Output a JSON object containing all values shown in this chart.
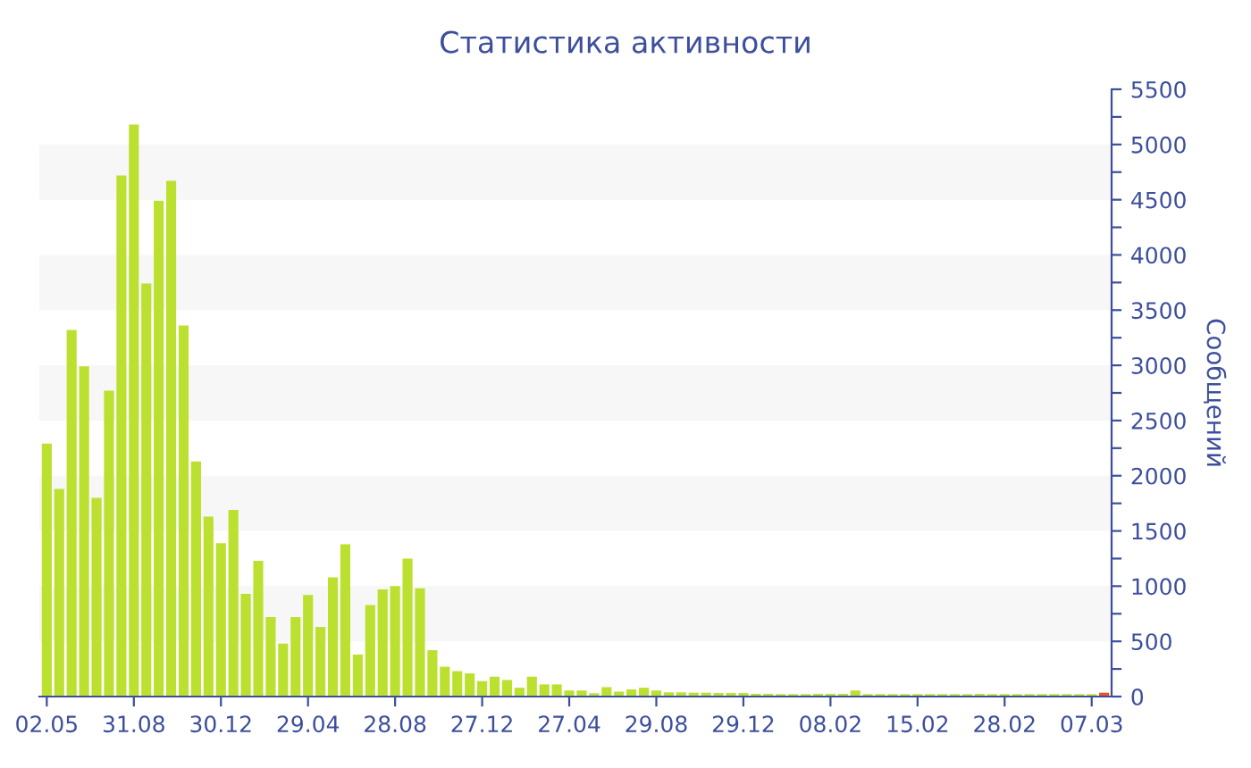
{
  "chart_data": {
    "type": "bar",
    "title": "Статистика активности",
    "ylabel": "Сообщений",
    "categories": [
      "02.05",
      null,
      null,
      null,
      null,
      null,
      null,
      "31.08",
      null,
      null,
      null,
      null,
      null,
      null,
      "30.12",
      null,
      null,
      null,
      null,
      null,
      null,
      "29.04",
      null,
      null,
      null,
      null,
      null,
      null,
      "28.08",
      null,
      null,
      null,
      null,
      null,
      null,
      "27.12",
      null,
      null,
      null,
      null,
      null,
      null,
      "27.04",
      null,
      null,
      null,
      null,
      null,
      null,
      "29.08",
      null,
      null,
      null,
      null,
      null,
      null,
      "29.12",
      null,
      null,
      null,
      null,
      null,
      null,
      "08.02",
      null,
      null,
      null,
      null,
      null,
      null,
      "15.02",
      null,
      null,
      null,
      null,
      null,
      null,
      "28.02",
      null,
      null,
      null,
      null,
      null,
      null,
      "07.03",
      null
    ],
    "values": [
      2290,
      1880,
      3320,
      2990,
      1800,
      2770,
      4720,
      5180,
      3740,
      4490,
      4670,
      3360,
      2130,
      1630,
      1390,
      1690,
      930,
      1230,
      720,
      480,
      720,
      920,
      630,
      1080,
      1380,
      380,
      830,
      970,
      1000,
      1250,
      980,
      420,
      270,
      230,
      210,
      140,
      180,
      150,
      80,
      180,
      110,
      110,
      55,
      55,
      30,
      85,
      45,
      65,
      80,
      55,
      38,
      38,
      35,
      35,
      32,
      32,
      32,
      25,
      25,
      22,
      22,
      22,
      25,
      25,
      25,
      55,
      22,
      22,
      22,
      22,
      22,
      22,
      22,
      22,
      22,
      25,
      22,
      22,
      22,
      22,
      22,
      22,
      22,
      22,
      22,
      35
    ],
    "colors": [
      "#bbe02f",
      "#bbe02f",
      "#bbe02f",
      "#bbe02f",
      "#bbe02f",
      "#bbe02f",
      "#bbe02f",
      "#bbe02f",
      "#bbe02f",
      "#bbe02f",
      "#bbe02f",
      "#bbe02f",
      "#bbe02f",
      "#bbe02f",
      "#bbe02f",
      "#bbe02f",
      "#bbe02f",
      "#bbe02f",
      "#bbe02f",
      "#bbe02f",
      "#bbe02f",
      "#bbe02f",
      "#bbe02f",
      "#bbe02f",
      "#bbe02f",
      "#bbe02f",
      "#bbe02f",
      "#bbe02f",
      "#bbe02f",
      "#bbe02f",
      "#bbe02f",
      "#bbe02f",
      "#bbe02f",
      "#bbe02f",
      "#bbe02f",
      "#bbe02f",
      "#bbe02f",
      "#bbe02f",
      "#bbe02f",
      "#bbe02f",
      "#bbe02f",
      "#bbe02f",
      "#bbe02f",
      "#bbe02f",
      "#bbe02f",
      "#bbe02f",
      "#bbe02f",
      "#bbe02f",
      "#bbe02f",
      "#bbe02f",
      "#bbe02f",
      "#bbe02f",
      "#bbe02f",
      "#bbe02f",
      "#bbe02f",
      "#bbe02f",
      "#bbe02f",
      "#bbe02f",
      "#bbe02f",
      "#bbe02f",
      "#bbe02f",
      "#bbe02f",
      "#bbe02f",
      "#bbe02f",
      "#bbe02f",
      "#bbe02f",
      "#bbe02f",
      "#bbe02f",
      "#bbe02f",
      "#bbe02f",
      "#bbe02f",
      "#bbe02f",
      "#bbe02f",
      "#bbe02f",
      "#bbe02f",
      "#bbe02f",
      "#bbe02f",
      "#bbe02f",
      "#bbe02f",
      "#bbe02f",
      "#bbe02f",
      "#bbe02f",
      "#bbe02f",
      "#bbe02f",
      "#bbe02f",
      "#e8532b"
    ],
    "ylim": [
      0,
      5500
    ],
    "yticks": [
      0,
      {
        "value": 250,
        "label": null
      },
      500,
      {
        "value": 750,
        "label": null
      },
      1000,
      {
        "value": 1250,
        "label": null
      },
      1500,
      {
        "value": 1750,
        "label": null
      },
      2000,
      {
        "value": 2250,
        "label": null
      },
      2500,
      {
        "value": 2750,
        "label": null
      },
      3000,
      {
        "value": 3250,
        "label": null
      },
      3500,
      {
        "value": 3750,
        "label": null
      },
      4000,
      {
        "value": 4250,
        "label": null
      },
      4500,
      {
        "value": 4750,
        "label": null
      },
      5000,
      {
        "value": 5250,
        "label": null
      },
      5500
    ],
    "bands": [
      {
        "axis": "y",
        "from": 500,
        "to": 1000,
        "color": "#f7f7f7"
      },
      {
        "axis": "y",
        "from": 1500,
        "to": 2000,
        "color": "#f7f7f7"
      },
      {
        "axis": "y",
        "from": 2500,
        "to": 3000,
        "color": "#f7f7f7"
      },
      {
        "axis": "y",
        "from": 3500,
        "to": 4000,
        "color": "#f7f7f7"
      },
      {
        "axis": "y",
        "from": 4500,
        "to": 5000,
        "color": "#f7f7f7"
      }
    ],
    "grid": false,
    "legend": false
  }
}
